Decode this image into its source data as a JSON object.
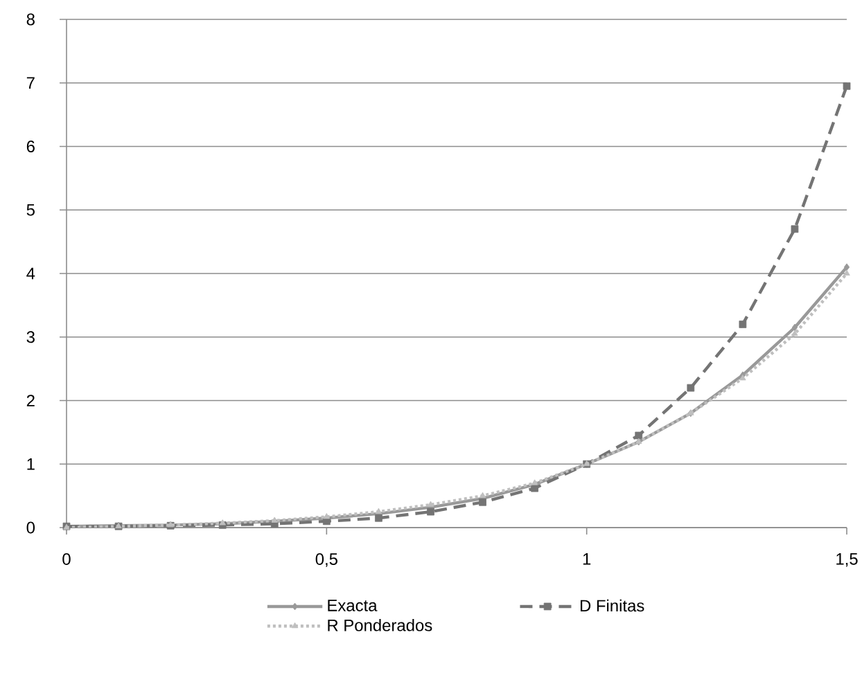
{
  "chart_data": {
    "type": "line",
    "x": [
      0,
      0.1,
      0.2,
      0.3,
      0.4,
      0.5,
      0.6,
      0.7,
      0.8,
      0.9,
      1.0,
      1.1,
      1.2,
      1.3,
      1.4,
      1.5
    ],
    "series": [
      {
        "name": "Exacta",
        "color": "#999999",
        "marker": "diamond",
        "line_style": "solid",
        "values": [
          0.02,
          0.03,
          0.04,
          0.06,
          0.1,
          0.15,
          0.22,
          0.32,
          0.46,
          0.68,
          1.0,
          1.35,
          1.8,
          2.4,
          3.15,
          4.1
        ]
      },
      {
        "name": "D Finitas",
        "color": "#747474",
        "marker": "square",
        "line_style": "dashed",
        "values": [
          0.02,
          0.02,
          0.03,
          0.04,
          0.06,
          0.1,
          0.15,
          0.25,
          0.4,
          0.62,
          1.0,
          1.45,
          2.2,
          3.2,
          4.7,
          6.95
        ]
      },
      {
        "name": "R Ponderados",
        "color": "#bfbfbf",
        "marker": "triangle",
        "line_style": "dotted",
        "values": [
          0,
          0.02,
          0.04,
          0.07,
          0.11,
          0.17,
          0.25,
          0.36,
          0.5,
          0.7,
          1.0,
          1.35,
          1.8,
          2.35,
          3.05,
          4.0
        ]
      }
    ],
    "xlim": [
      0,
      1.5
    ],
    "xticks": [
      0,
      {
        "value": 0.5,
        "label": "0,5"
      },
      1,
      {
        "value": 1.5,
        "label": "1,5"
      }
    ],
    "ylim": [
      0,
      8
    ],
    "yticks": [
      0,
      1,
      2,
      3,
      4,
      5,
      6,
      7,
      8
    ],
    "grid": "y",
    "legend": "bottom"
  }
}
